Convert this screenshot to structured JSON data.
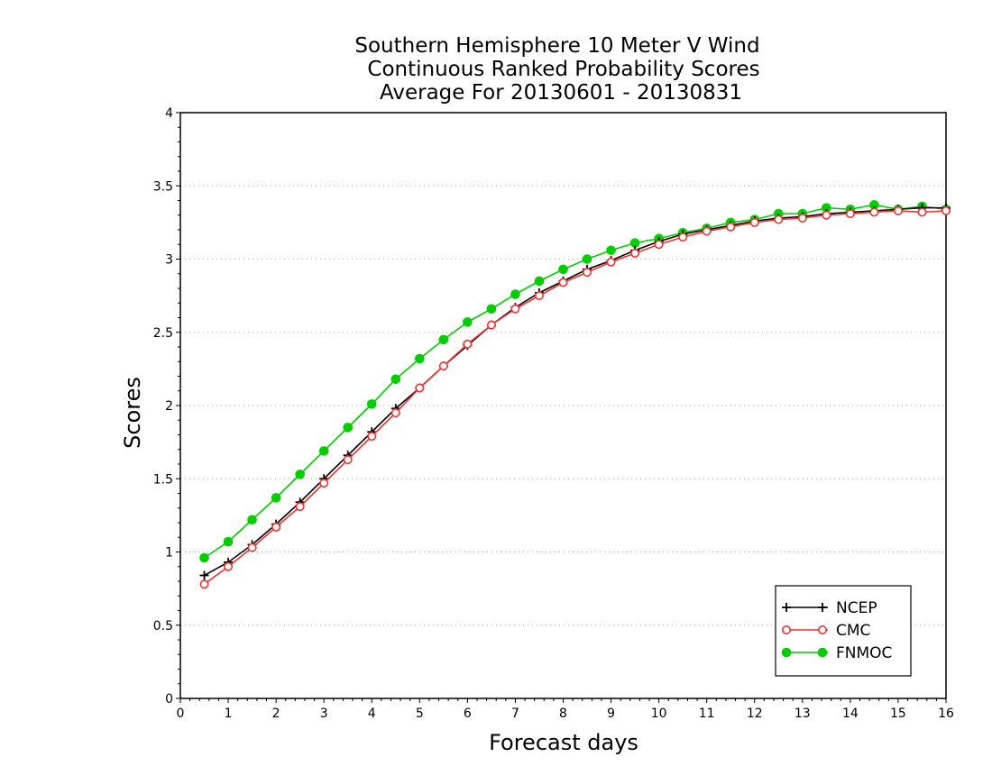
{
  "chart_data": {
    "type": "line",
    "title": [
      "Southern Hemisphere 10 Meter V Wind",
      "Continuous Ranked Probability Scores",
      "Average For 20130601 - 20130831"
    ],
    "xlabel": "Forecast days",
    "ylabel": "Scores",
    "xlim": [
      0,
      16
    ],
    "ylim": [
      0,
      4
    ],
    "xticks": [
      "0",
      "1",
      "2",
      "3",
      "4",
      "5",
      "6",
      "7",
      "8",
      "9",
      "10",
      "11",
      "12",
      "13",
      "14",
      "15",
      "16"
    ],
    "yticks": [
      "0",
      "0.5",
      "1",
      "1.5",
      "2",
      "2.5",
      "3",
      "3.5",
      "4"
    ],
    "grid": "horizontal dotted",
    "legend_position": "bottom-right",
    "x": [
      0.5,
      1,
      1.5,
      2,
      2.5,
      3,
      3.5,
      4,
      4.5,
      5,
      5.5,
      6,
      6.5,
      7,
      7.5,
      8,
      8.5,
      9,
      9.5,
      10,
      10.5,
      11,
      11.5,
      12,
      12.5,
      13,
      13.5,
      14,
      14.5,
      15,
      15.5,
      16
    ],
    "series": [
      {
        "name": "NCEP",
        "color": "#000000",
        "marker": "plus",
        "values": [
          0.84,
          0.93,
          1.05,
          1.19,
          1.34,
          1.5,
          1.66,
          1.82,
          1.98,
          2.12,
          2.27,
          2.41,
          2.55,
          2.67,
          2.77,
          2.85,
          2.93,
          2.99,
          3.06,
          3.12,
          3.17,
          3.2,
          3.23,
          3.26,
          3.28,
          3.29,
          3.31,
          3.32,
          3.33,
          3.34,
          3.35,
          3.35
        ]
      },
      {
        "name": "CMC",
        "color": "#ee3333",
        "marker": "open-circle",
        "values": [
          0.78,
          0.9,
          1.03,
          1.17,
          1.31,
          1.47,
          1.63,
          1.79,
          1.95,
          2.12,
          2.27,
          2.42,
          2.55,
          2.66,
          2.75,
          2.84,
          2.91,
          2.98,
          3.04,
          3.1,
          3.15,
          3.19,
          3.22,
          3.25,
          3.27,
          3.28,
          3.3,
          3.31,
          3.32,
          3.33,
          3.32,
          3.33
        ]
      },
      {
        "name": "FNMOC",
        "color": "#00cc00",
        "marker": "filled-circle",
        "values": [
          0.96,
          1.07,
          1.22,
          1.37,
          1.53,
          1.69,
          1.85,
          2.01,
          2.18,
          2.32,
          2.45,
          2.57,
          2.66,
          2.76,
          2.85,
          2.93,
          3.0,
          3.06,
          3.11,
          3.14,
          3.18,
          3.21,
          3.25,
          3.27,
          3.31,
          3.31,
          3.35,
          3.34,
          3.37,
          3.34,
          3.36,
          3.34
        ]
      }
    ]
  }
}
